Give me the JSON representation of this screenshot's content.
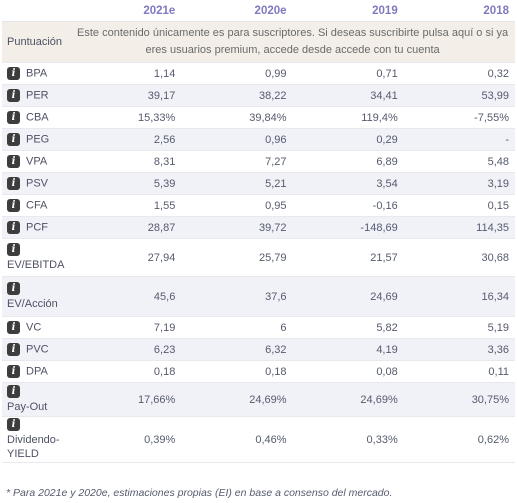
{
  "header": {
    "columns": [
      "2021e",
      "2020e",
      "2019",
      "2018"
    ]
  },
  "notice": {
    "label": "Puntuación",
    "text": "Este contenido únicamente es para suscriptores. Si deseas suscribirte pulsa aquí o si ya eres usuarios premium, accede desde accede con tu cuenta"
  },
  "rows": [
    {
      "label": "BPA",
      "values": [
        "1,14",
        "0,99",
        "0,71",
        "0,32"
      ]
    },
    {
      "label": "PER",
      "values": [
        "39,17",
        "38,22",
        "34,41",
        "53,99"
      ]
    },
    {
      "label": "CBA",
      "values": [
        "15,33%",
        "39,84%",
        "119,4%",
        "-7,55%"
      ]
    },
    {
      "label": "PEG",
      "values": [
        "2,56",
        "0,96",
        "0,29",
        "-"
      ]
    },
    {
      "label": "VPA",
      "values": [
        "8,31",
        "7,27",
        "6,89",
        "5,48"
      ]
    },
    {
      "label": "PSV",
      "values": [
        "5,39",
        "5,21",
        "3,54",
        "3,19"
      ]
    },
    {
      "label": "CFA",
      "values": [
        "1,55",
        "0,95",
        "-0,16",
        "0,15"
      ]
    },
    {
      "label": "PCF",
      "values": [
        "28,87",
        "39,72",
        "-148,69",
        "114,35"
      ]
    },
    {
      "label": "EV/EBITDA",
      "values": [
        "27,94",
        "25,79",
        "21,57",
        "30,68"
      ]
    },
    {
      "label": "EV/Acción",
      "values": [
        "45,6",
        "37,6",
        "24,69",
        "16,34"
      ]
    },
    {
      "label": "VC",
      "values": [
        "7,19",
        "6",
        "5,82",
        "5,19"
      ]
    },
    {
      "label": "PVC",
      "values": [
        "6,23",
        "6,32",
        "4,19",
        "3,36"
      ]
    },
    {
      "label": "DPA",
      "values": [
        "0,18",
        "0,18",
        "0,08",
        "0,11"
      ]
    },
    {
      "label": "Pay-Out",
      "values": [
        "17,66%",
        "24,69%",
        "24,69%",
        "30,75%"
      ]
    },
    {
      "label": "Dividendo-YIELD",
      "values": [
        "0,39%",
        "0,46%",
        "0,33%",
        "0,62%"
      ]
    }
  ],
  "footnote": "* Para 2021e y 2020e, estimaciones propias (EI) en base a consenso del mercado.",
  "icon": {
    "name": "info-icon",
    "glyph": "i",
    "color": "#3d3d3d"
  }
}
